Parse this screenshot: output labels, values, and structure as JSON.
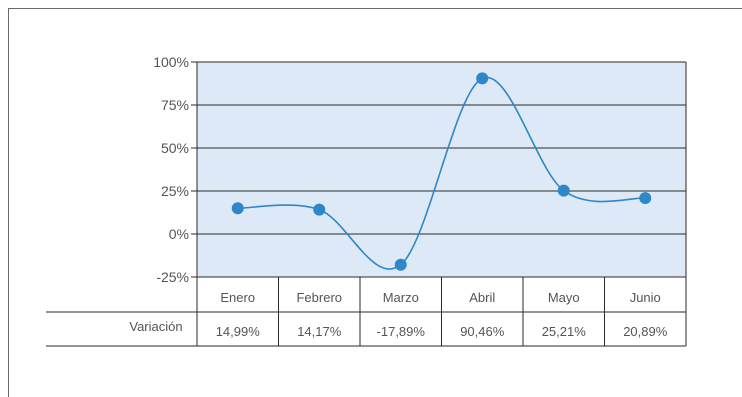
{
  "chart_data": {
    "type": "line",
    "categories": [
      "Enero",
      "Febrero",
      "Marzo",
      "Abril",
      "Mayo",
      "Junio"
    ],
    "series": [
      {
        "name": "Variación",
        "values": [
          14.99,
          14.17,
          -17.89,
          90.46,
          25.21,
          20.89
        ]
      }
    ],
    "table_values": [
      "14,99%",
      "14,17%",
      "-17,89%",
      "90,46%",
      "25,21%",
      "20,89%"
    ],
    "ylim": [
      -25,
      100
    ],
    "yticks": [
      -25,
      0,
      25,
      50,
      75,
      100
    ],
    "ytick_labels": [
      "-25%",
      "0%",
      "25%",
      "50%",
      "75%",
      "100%"
    ],
    "grid": true,
    "colors": {
      "line": "#2f86c9",
      "marker": "#2f86c9",
      "plot_background": "#dde9f6",
      "grid": "#2b2b2b"
    }
  }
}
